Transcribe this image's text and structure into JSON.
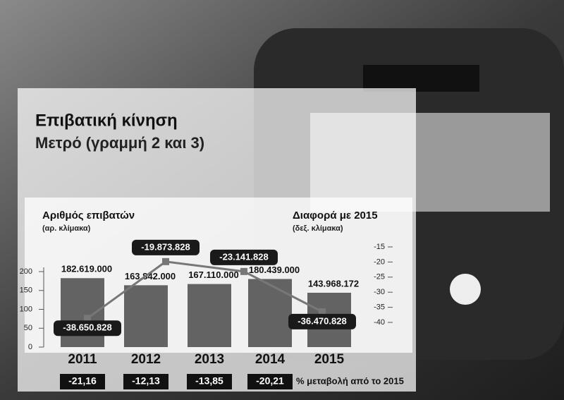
{
  "chart_data": {
    "type": "bar",
    "title": "Επιβατική κίνηση",
    "subtitle": "Μετρό (γραμμή 2 και 3)",
    "categories": [
      "2011",
      "2012",
      "2013",
      "2014",
      "2015"
    ],
    "ylim": [
      0,
      200
    ],
    "yticks": [
      0,
      50,
      100,
      150,
      200
    ],
    "y2lim": [
      -40,
      -15
    ],
    "y2ticks": [
      -15,
      -20,
      -25,
      -30,
      -35,
      -40
    ],
    "y_label": "Αριθμός επιβατών",
    "y_note": "(αρ. κλίμακα)",
    "y2_label": "Διαφορά με 2015",
    "y2_note": "(δεξ. κλίμακα)",
    "series": [
      {
        "type": "bar",
        "color": "#4a4a4a",
        "values": [
          182.619,
          163.842,
          167.11,
          180.439,
          143.968172
        ],
        "value_labels": [
          "182.619.000",
          "163.842.000",
          "167.110.000",
          "180.439.000",
          "143.968.172"
        ]
      },
      {
        "type": "line",
        "axis": "y2",
        "color": "#777777",
        "values": [
          -38.650828,
          -19.873828,
          -23.141828,
          -36.470828,
          null
        ],
        "value_labels": [
          "-38.650.828",
          "-19.873.828",
          "-23.141.828",
          "-36.470.828",
          null
        ]
      }
    ],
    "changes": {
      "label": "% μεταβολή από το 2015",
      "values": [
        -21.16,
        -12.13,
        -13.85,
        -20.21
      ],
      "value_labels": [
        "-21,16",
        "-12,13",
        "-13,85",
        "-20,21"
      ]
    }
  }
}
